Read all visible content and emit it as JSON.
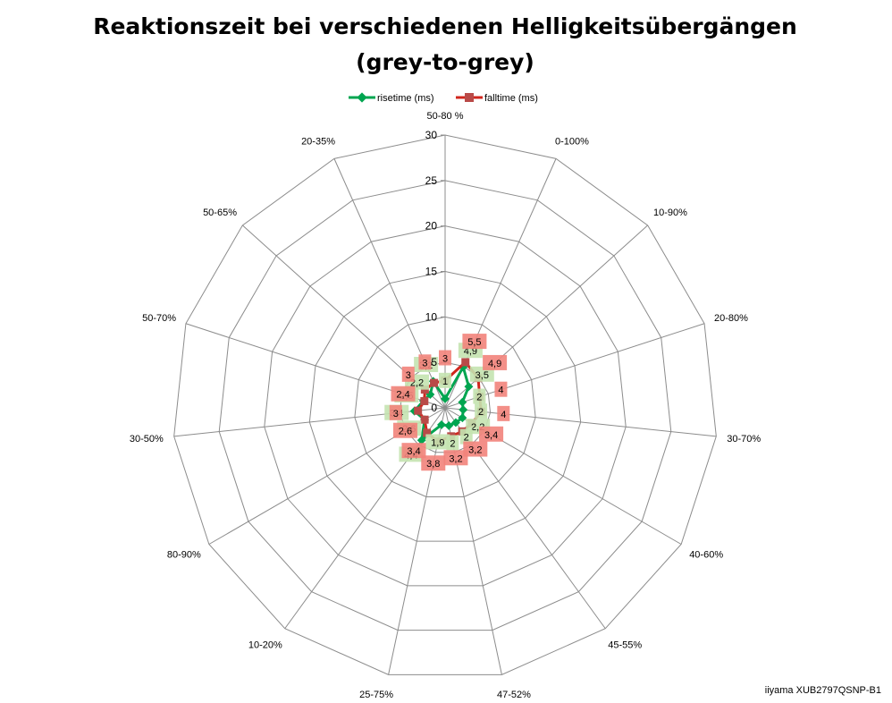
{
  "chart_data": {
    "type": "radar",
    "title_line1": "Reaktionszeit bei verschiedenen Helligkeitsübergängen",
    "title_line2": "(grey-to-grey)",
    "categories": [
      "50-80 %",
      "0-100%",
      "10-90%",
      "20-80%",
      "30-70%",
      "40-60%",
      "45-55%",
      "47-52%",
      "25-75%",
      "10-20%",
      "80-90%",
      "30-50%",
      "50-70%",
      "50-65%",
      "20-35%"
    ],
    "rlim": [
      0,
      30
    ],
    "ticks": [
      0,
      5,
      10,
      15,
      20,
      25,
      30
    ],
    "tick_labels": [
      "0",
      "5",
      "10",
      "15",
      "20",
      "25",
      "30"
    ],
    "grid": true,
    "legend_position": "top",
    "series": [
      {
        "name": "risetime (ms)",
        "color": "#00A550",
        "label_bg": "#C4E3B0",
        "marker": "diamond",
        "values": [
          1,
          4.9,
          3.5,
          2,
          2,
          2.2,
          2,
          2,
          1.9,
          4.4,
          2.6,
          3.4,
          2.5,
          2.2,
          3.2
        ],
        "labels": [
          "1",
          "4,9",
          "3,5",
          "2",
          "2",
          "2,2",
          "2",
          "2",
          "1,9",
          "4,4",
          "2,6",
          "3,4",
          "2,5",
          "2,2",
          "3,2"
        ]
      },
      {
        "name": "falltime (ms)",
        "color": "#D0261D",
        "marker_color": "#B94A48",
        "label_bg": "#F2837B",
        "marker": "square",
        "values": [
          3,
          5.5,
          4.9,
          4,
          4,
          3.4,
          3.2,
          3.2,
          3.8,
          3.4,
          2.6,
          3,
          2.4,
          3,
          3
        ],
        "labels": [
          "3",
          "5,5",
          "4,9",
          "4",
          "4",
          "3,4",
          "3,2",
          "3,2",
          "3,8",
          "3,4",
          "2,6",
          "3",
          "2,4",
          "3",
          "3"
        ]
      }
    ]
  },
  "footer": "iiyama XUB2797QSNP-B1"
}
